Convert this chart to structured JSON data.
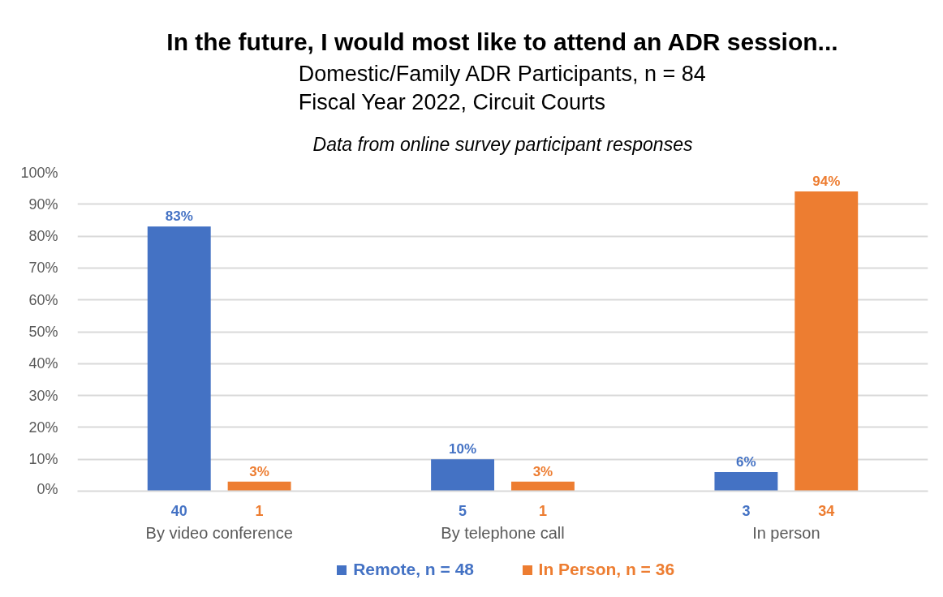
{
  "chart_data": {
    "type": "bar",
    "title": "In the future, I would most like to attend an ADR session...",
    "subtitle": "Domestic/Family ADR Participants, n = 84\nFiscal Year 2022, Circuit Courts",
    "annotations": [
      "Data from online survey participant responses",
      "40",
      "1",
      "5",
      "1",
      "3",
      "34"
    ],
    "categories": [
      "By video conference",
      "By telephone call",
      "In person"
    ],
    "series": [
      {
        "name": "Remote, n = 48",
        "color": "#4472c4",
        "values": [
          83,
          10,
          6
        ],
        "value_labels": [
          "83%",
          "10%",
          "6%"
        ]
      },
      {
        "name": "In Person, n = 36",
        "color": "#ed7d31",
        "values": [
          3,
          3,
          94
        ],
        "value_labels": [
          "3%",
          "3%",
          "94%"
        ]
      }
    ],
    "ylim": [
      0,
      100
    ],
    "yticks": [
      {
        "value": 0,
        "label": "0%"
      },
      {
        "value": 10,
        "label": "10%"
      },
      {
        "value": 20,
        "label": "20%"
      },
      {
        "value": 30,
        "label": "30%"
      },
      {
        "value": 40,
        "label": "40%"
      },
      {
        "value": 50,
        "label": "50%"
      },
      {
        "value": 60,
        "label": "60%"
      },
      {
        "value": 70,
        "label": "70%"
      },
      {
        "value": 80,
        "label": "80%"
      },
      {
        "value": 90,
        "label": "90%"
      },
      {
        "value": 100,
        "label": "100%"
      }
    ],
    "grid": "y",
    "legend": "bottom"
  }
}
